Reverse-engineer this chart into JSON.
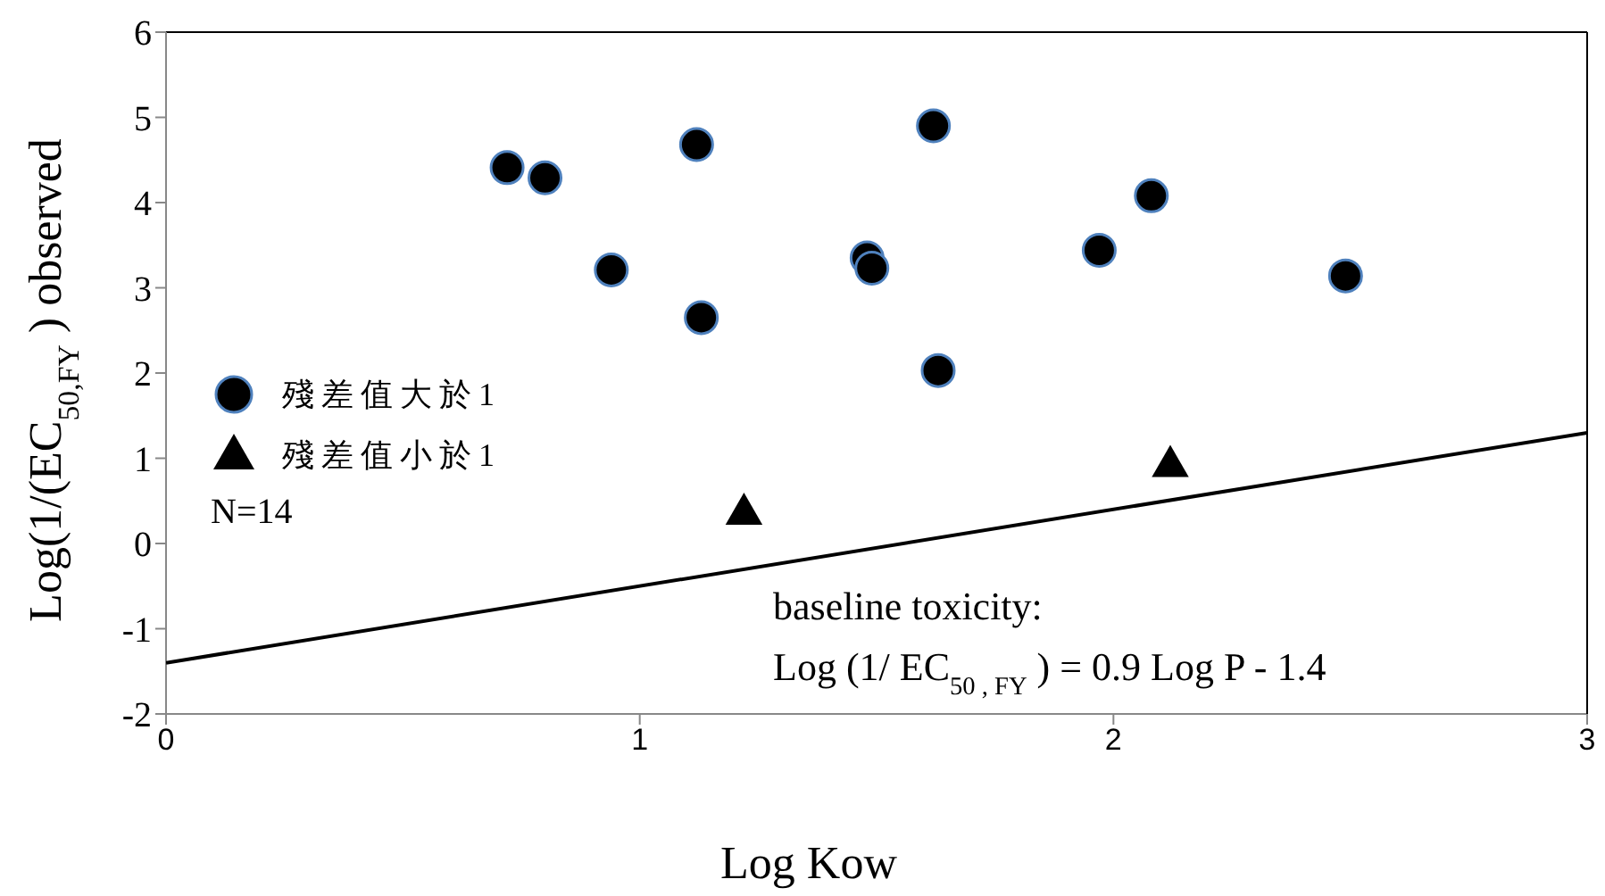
{
  "chart_data": {
    "type": "scatter",
    "xlabel": "Log Kow",
    "ylabel": "Log(1/(EC$_{50,FY}$ )  observed",
    "xlim": [
      0,
      3
    ],
    "xticks": [
      0,
      1,
      2,
      3
    ],
    "ylim": [
      -2,
      6
    ],
    "yticks": [
      -2,
      -1,
      0,
      1,
      2,
      3,
      4,
      5,
      6
    ],
    "legend": "left",
    "series": [
      {
        "name": "殘差值大於1",
        "color": "#000000",
        "marker": "circle",
        "x": [
          0.72,
          0.8,
          1.12,
          0.94,
          1.13,
          1.48,
          1.49,
          1.62,
          1.63,
          1.97,
          2.08,
          2.49
        ],
        "values": [
          4.41,
          4.29,
          4.68,
          3.21,
          2.65,
          3.35,
          3.23,
          4.9,
          2.03,
          3.44,
          4.08,
          3.14
        ]
      },
      {
        "name": "殘差值小於1",
        "color": "#000000",
        "marker": "triangle",
        "x": [
          1.22,
          2.12
        ],
        "values": [
          0.37,
          0.93
        ]
      },
      {
        "type": "line",
        "color": "#000000",
        "x": [
          0,
          3
        ],
        "values": [
          -1.4,
          1.3
        ]
      }
    ],
    "annotations": [
      "N=14",
      "baseline toxicity:",
      "Log (1/ EC$_{50 , FY}$ ) = 0.9 Log P - 1.4"
    ]
  }
}
